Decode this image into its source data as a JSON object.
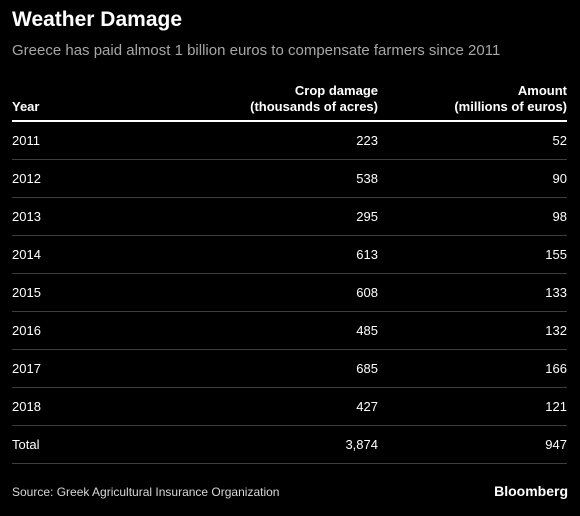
{
  "chart_data": {
    "type": "table",
    "title": "Weather Damage",
    "subtitle": "Greece has paid almost 1 billion euros to compensate farmers since 2011",
    "columns": [
      {
        "key": "year",
        "label": "Year"
      },
      {
        "key": "crop",
        "label": "Crop damage\n(thousands of acres)"
      },
      {
        "key": "amount",
        "label": "Amount\n(millions of euros)"
      }
    ],
    "rows": [
      {
        "year": "2011",
        "crop": "223",
        "amount": "52"
      },
      {
        "year": "2012",
        "crop": "538",
        "amount": "90"
      },
      {
        "year": "2013",
        "crop": "295",
        "amount": "98"
      },
      {
        "year": "2014",
        "crop": "613",
        "amount": "155"
      },
      {
        "year": "2015",
        "crop": "608",
        "amount": "133"
      },
      {
        "year": "2016",
        "crop": "485",
        "amount": "132"
      },
      {
        "year": "2017",
        "crop": "685",
        "amount": "166"
      },
      {
        "year": "2018",
        "crop": "427",
        "amount": "121"
      }
    ],
    "total": {
      "year": "Total",
      "crop": "3,874",
      "amount": "947"
    }
  },
  "footer": {
    "source": "Source: Greek Agricultural Insurance Organization",
    "brand": "Bloomberg"
  },
  "colors": {
    "background": "#000000",
    "text": "#ffffff",
    "subtitle": "#a7a7a7",
    "rule": "#3d3d3d"
  }
}
